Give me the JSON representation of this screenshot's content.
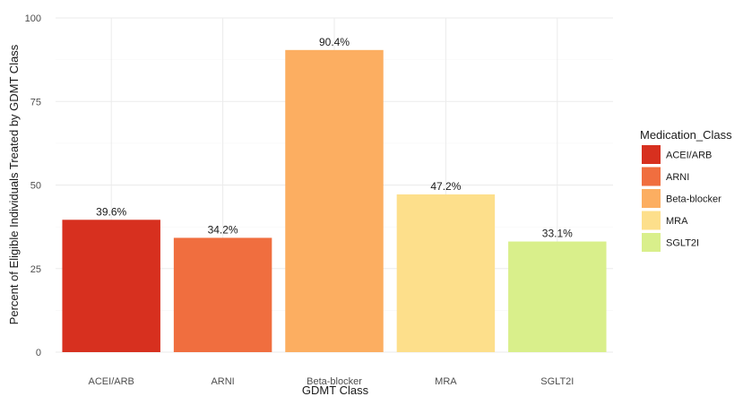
{
  "chart_data": {
    "type": "bar",
    "categories": [
      "ACEI/ARB",
      "ARNI",
      "Beta-blocker",
      "MRA",
      "SGLT2I"
    ],
    "values": [
      39.6,
      34.2,
      90.4,
      47.2,
      33.1
    ],
    "data_labels": [
      "39.6%",
      "34.2%",
      "90.4%",
      "47.2%",
      "33.1%"
    ],
    "colors": [
      "#d7301f",
      "#f06e3f",
      "#fcae61",
      "#fddf8b",
      "#d9ef8b"
    ],
    "xlabel": "GDMT Class",
    "ylabel": "Percent of Eligible Individuals Treated by GDMT Class",
    "ylim": [
      0,
      100
    ],
    "y_ticks": [
      0,
      25,
      50,
      75,
      100
    ],
    "y_tick_labels": [
      "0",
      "25",
      "50",
      "75",
      "100"
    ],
    "grid": true,
    "legend": {
      "title": "Medication_Class",
      "position": "right",
      "entries": [
        "ACEI/ARB",
        "ARNI",
        "Beta-blocker",
        "MRA",
        "SGLT2I"
      ]
    }
  }
}
